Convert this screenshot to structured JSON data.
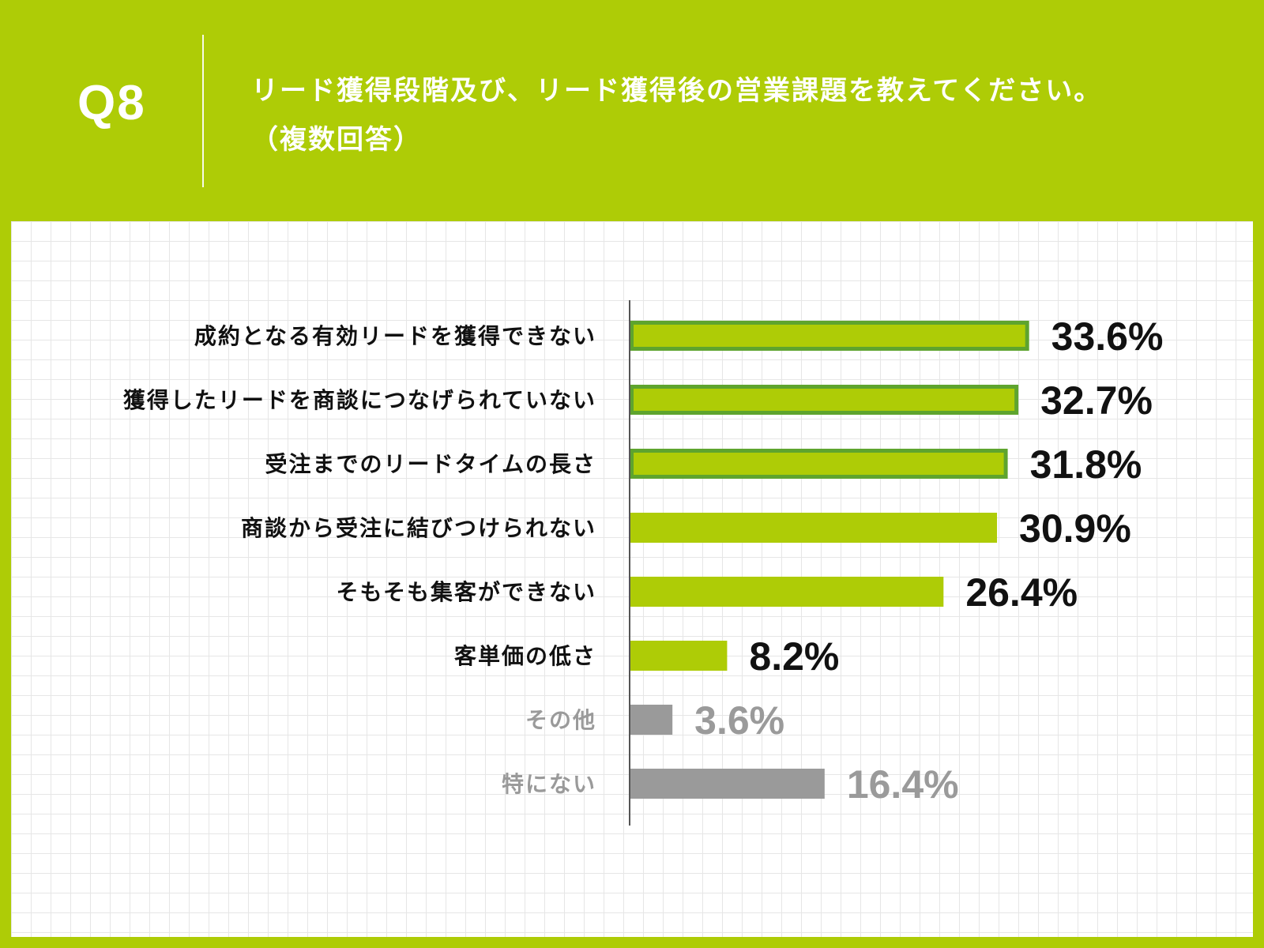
{
  "header": {
    "q_number": "Q8",
    "question_line1": "リード獲得段階及び、リード獲得後の営業課題を教えてください。",
    "question_line2": "（複数回答）"
  },
  "colors": {
    "background": "#aecc06",
    "bar_primary": "#aecc06",
    "bar_highlight_border": "#5ea42e",
    "bar_other": "#9a9a9a",
    "text_primary": "#111111",
    "text_other": "#9a9a9a"
  },
  "chart_data": {
    "type": "bar",
    "orientation": "horizontal",
    "categories": [
      "成約となる有効リードを獲得できない",
      "獲得したリードを商談につなげられていない",
      "受注までのリードタイムの長さ",
      "商談から受注に結びつけられない",
      "そもそも集客ができない",
      "客単価の低さ",
      "その他",
      "特にない"
    ],
    "values": [
      33.6,
      32.7,
      31.8,
      30.9,
      26.4,
      8.2,
      3.6,
      16.4
    ],
    "value_labels": [
      "33.6%",
      "32.7%",
      "31.8%",
      "30.9%",
      "26.4%",
      "8.2%",
      "3.6%",
      "16.4%"
    ],
    "highlighted": [
      true,
      true,
      true,
      false,
      false,
      false,
      false,
      false
    ],
    "muted": [
      false,
      false,
      false,
      false,
      false,
      false,
      true,
      true
    ],
    "unit": "%",
    "grid": true
  }
}
